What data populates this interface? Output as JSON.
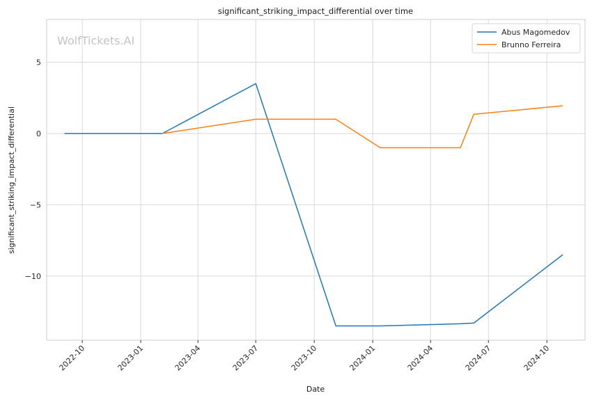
{
  "watermark": "WolfTickets.AI",
  "chart_data": {
    "type": "line",
    "title": "significant_striking_impact_differential over time",
    "xlabel": "Date",
    "ylabel": "significant_striking_impact_differential",
    "x_ticks": [
      "2022-10",
      "2023-01",
      "2023-04",
      "2023-07",
      "2023-10",
      "2024-01",
      "2024-04",
      "2024-07",
      "2024-10"
    ],
    "y_ticks": [
      5,
      0,
      -5,
      -10
    ],
    "y_tick_labels": [
      "5",
      "0",
      "−5",
      "−10"
    ],
    "xlim": [
      "2022-08-06",
      "2024-11-30"
    ],
    "ylim": [
      -14.5,
      8.0
    ],
    "grid": true,
    "legend_position": "top-right",
    "series": [
      {
        "name": "Abus Magomedov",
        "color": "#1f77b4",
        "x": [
          "2022-09-03",
          "2023-02-04",
          "2023-07-01",
          "2023-11-04",
          "2024-01-13",
          "2024-05-18",
          "2024-06-08",
          "2024-10-26"
        ],
        "y": [
          0.0,
          0.0,
          3.5,
          -13.5,
          -13.5,
          -13.35,
          -13.3,
          -8.5
        ]
      },
      {
        "name": "Brunno Ferreira",
        "color": "#ff7f0e",
        "x": [
          "2023-02-04",
          "2023-07-01",
          "2023-11-04",
          "2024-01-13",
          "2024-05-18",
          "2024-06-08",
          "2024-10-26"
        ],
        "y": [
          0.0,
          1.0,
          1.0,
          -1.0,
          -1.0,
          1.35,
          1.95
        ]
      }
    ]
  }
}
